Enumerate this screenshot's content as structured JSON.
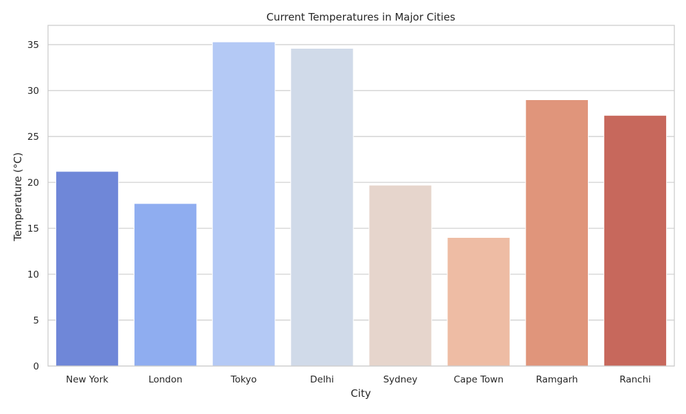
{
  "chart_data": {
    "type": "bar",
    "title": "Current Temperatures in Major Cities",
    "xlabel": "City",
    "ylabel": "Temperature (°C)",
    "categories": [
      "New York",
      "London",
      "Tokyo",
      "Delhi",
      "Sydney",
      "Cape Town",
      "Ramgarh",
      "Ranchi"
    ],
    "values": [
      21.2,
      17.7,
      35.3,
      34.6,
      19.7,
      14.0,
      29.0,
      27.3
    ],
    "colors": [
      "#6f87d8",
      "#8fadf0",
      "#b4c9f5",
      "#d0dae9",
      "#e6d5cc",
      "#eebca4",
      "#e0957b",
      "#c7685c"
    ],
    "ylim": [
      0,
      37.1
    ],
    "yticks": [
      0,
      5,
      10,
      15,
      20,
      25,
      30,
      35
    ],
    "grid": true,
    "grid_axis": "y",
    "grid_color": "#cccccc",
    "spine_color": "#cccccc",
    "legend": "none"
  }
}
